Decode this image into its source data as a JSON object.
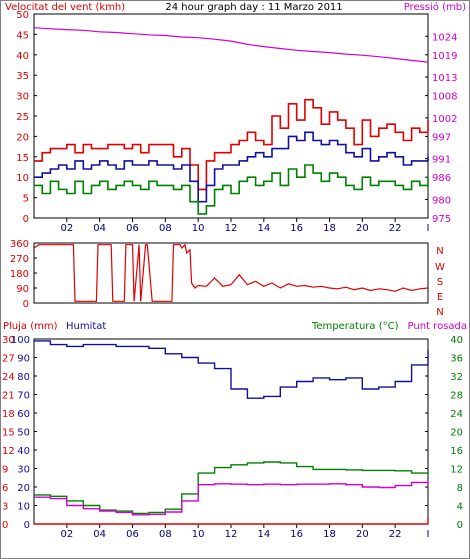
{
  "chart_data": [
    {
      "type": "line",
      "title": "24 hour graph day : 11 Marzo 2011",
      "ylabel_left": "Velocitat del vent (kmh)",
      "ylabel_right": "Pressió (mb)",
      "xticks": [
        "02",
        "04",
        "06",
        "08",
        "10",
        "12",
        "14",
        "16",
        "18",
        "20",
        "22"
      ],
      "x_end_label": "I",
      "xlim": [
        0,
        24
      ],
      "ylim_left": [
        0,
        50
      ],
      "yticks_left": [
        0,
        5,
        10,
        15,
        20,
        25,
        30,
        35,
        40,
        45,
        50
      ],
      "ylim_right": [
        975,
        1030
      ],
      "yticks_right": [
        975,
        980,
        986,
        991,
        997,
        1002,
        1008,
        1013,
        1019,
        1024
      ],
      "colors": {
        "gust": "#e00000",
        "avg": "#1010a0",
        "min": "#008000",
        "pressure": "#d000d0"
      },
      "series": [
        {
          "key": "gust",
          "axis": "left",
          "x": [
            0,
            0.5,
            1,
            1.5,
            2,
            2.5,
            3,
            3.5,
            4,
            4.5,
            5,
            5.5,
            6,
            6.5,
            7,
            7.5,
            8,
            8.5,
            9,
            9.5,
            10,
            10.5,
            11,
            11.5,
            12,
            12.5,
            13,
            13.5,
            14,
            14.5,
            15,
            15.5,
            16,
            16.5,
            17,
            17.5,
            18,
            18.5,
            19,
            19.5,
            20,
            20.5,
            21,
            21.5,
            22,
            22.5,
            23,
            23.5,
            24
          ],
          "values": [
            14,
            16,
            17,
            17,
            18,
            16,
            18,
            17,
            17,
            18,
            18,
            17,
            18,
            16,
            18,
            18,
            18,
            15,
            17,
            13,
            7,
            14,
            16,
            16,
            18,
            19,
            21,
            19,
            18,
            25,
            22,
            28,
            24,
            29,
            27,
            23,
            26,
            24,
            22,
            18,
            24,
            20,
            22,
            23,
            21,
            19,
            22,
            21,
            24
          ]
        },
        {
          "key": "avg",
          "axis": "left",
          "x": [
            0,
            0.5,
            1,
            1.5,
            2,
            2.5,
            3,
            3.5,
            4,
            4.5,
            5,
            5.5,
            6,
            6.5,
            7,
            7.5,
            8,
            8.5,
            9,
            9.5,
            10,
            10.5,
            11,
            11.5,
            12,
            12.5,
            13,
            13.5,
            14,
            14.5,
            15,
            15.5,
            16,
            16.5,
            17,
            17.5,
            18,
            18.5,
            19,
            19.5,
            20,
            20.5,
            21,
            21.5,
            22,
            22.5,
            23,
            23.5,
            24
          ],
          "values": [
            10,
            11,
            12,
            13,
            12,
            14,
            12,
            13,
            14,
            13,
            12,
            14,
            13,
            13,
            14,
            13,
            13,
            12,
            13,
            9,
            4,
            8,
            12,
            13,
            13,
            14,
            15,
            16,
            15,
            17,
            17,
            20,
            19,
            21,
            19,
            18,
            19,
            18,
            16,
            15,
            17,
            14,
            15,
            16,
            15,
            13,
            14,
            14,
            15
          ]
        },
        {
          "key": "min",
          "axis": "left",
          "x": [
            0,
            0.5,
            1,
            1.5,
            2,
            2.5,
            3,
            3.5,
            4,
            4.5,
            5,
            5.5,
            6,
            6.5,
            7,
            7.5,
            8,
            8.5,
            9,
            9.5,
            10,
            10.5,
            11,
            11.5,
            12,
            12.5,
            13,
            13.5,
            14,
            14.5,
            15,
            15.5,
            16,
            16.5,
            17,
            17.5,
            18,
            18.5,
            19,
            19.5,
            20,
            20.5,
            21,
            21.5,
            22,
            22.5,
            23,
            23.5,
            24
          ],
          "values": [
            8,
            6,
            9,
            7,
            6,
            9,
            6,
            8,
            9,
            7,
            8,
            9,
            8,
            7,
            9,
            8,
            8,
            7,
            8,
            4,
            1,
            3,
            7,
            8,
            6,
            9,
            10,
            8,
            9,
            11,
            8,
            12,
            10,
            13,
            11,
            9,
            11,
            10,
            8,
            7,
            10,
            8,
            9,
            9,
            8,
            7,
            9,
            8,
            10
          ]
        },
        {
          "key": "pressure",
          "axis": "right",
          "x": [
            0,
            1,
            2,
            3,
            4,
            5,
            6,
            7,
            8,
            9,
            10,
            11,
            12,
            13,
            14,
            15,
            16,
            17,
            18,
            19,
            20,
            21,
            22,
            23,
            24
          ],
          "values": [
            1026.3,
            1026.0,
            1025.8,
            1025.6,
            1025.2,
            1025.0,
            1024.7,
            1024.4,
            1024.2,
            1023.8,
            1023.6,
            1023.2,
            1022.7,
            1021.8,
            1021.2,
            1020.7,
            1020.2,
            1019.9,
            1019.6,
            1019.2,
            1018.9,
            1018.5,
            1018.0,
            1017.5,
            1017.0
          ]
        }
      ]
    },
    {
      "type": "line",
      "title": "",
      "ylim": [
        0,
        360
      ],
      "yticks": [
        0,
        90,
        180,
        270,
        360
      ],
      "direction_labels": [
        "N",
        "W",
        "S",
        "E",
        "N"
      ],
      "color": "#e00000",
      "series": [
        {
          "key": "direction",
          "x": [
            0,
            0.3,
            0.4,
            2.4,
            2.5,
            3.8,
            3.9,
            4.7,
            4.8,
            5.5,
            5.6,
            6.0,
            6.1,
            6.4,
            6.5,
            6.8,
            6.9,
            7.2,
            7.3,
            8.4,
            8.5,
            8.9,
            9.0,
            9.2,
            9.3,
            9.5,
            9.6,
            9.8,
            10,
            10.5,
            11,
            11.5,
            12,
            12.5,
            13,
            13.5,
            14,
            14.5,
            15,
            15.5,
            16,
            16.5,
            17,
            17.5,
            18,
            18.5,
            19,
            19.5,
            20,
            20.5,
            21,
            21.5,
            22,
            22.5,
            23,
            23.5,
            24
          ],
          "values": [
            330,
            350,
            350,
            350,
            10,
            10,
            350,
            350,
            10,
            10,
            350,
            350,
            10,
            350,
            10,
            350,
            350,
            10,
            10,
            10,
            350,
            350,
            330,
            350,
            300,
            320,
            120,
            90,
            105,
            100,
            150,
            100,
            110,
            170,
            110,
            130,
            100,
            120,
            90,
            115,
            100,
            105,
            95,
            100,
            90,
            85,
            95,
            80,
            90,
            75,
            85,
            80,
            70,
            90,
            75,
            85,
            90
          ]
        }
      ]
    },
    {
      "type": "line",
      "title": "",
      "ylabel_left_1": "Pluja (mm)",
      "ylabel_left_2": "Humitat",
      "ylabel_right_1": "Temperatura (°C)",
      "ylabel_right_2": "Punt rosada",
      "xticks": [
        "02",
        "04",
        "06",
        "08",
        "10",
        "12",
        "14",
        "16",
        "18",
        "20",
        "22"
      ],
      "x_end_label": "I",
      "xlim": [
        0,
        24
      ],
      "ylim_rain": [
        0,
        30
      ],
      "yticks_rain": [
        0,
        3,
        6,
        9,
        12,
        15,
        18,
        21,
        24,
        27,
        30
      ],
      "ylim_humidity": [
        0,
        100
      ],
      "yticks_humidity": [
        0,
        10,
        20,
        30,
        40,
        50,
        60,
        70,
        80,
        90,
        100
      ],
      "ylim_temp": [
        0,
        40
      ],
      "yticks_temp": [
        0,
        4,
        8,
        12,
        16,
        20,
        24,
        28,
        32,
        36,
        40
      ],
      "colors": {
        "rain": "#e00000",
        "humidity": "#1010a0",
        "temperature": "#008000",
        "dewpoint": "#d000d0"
      },
      "series": [
        {
          "key": "rain",
          "axis": "rain",
          "x": [
            0,
            23.7,
            24
          ],
          "values": [
            0,
            0,
            1
          ]
        },
        {
          "key": "humidity",
          "axis": "humidity",
          "x": [
            0,
            1,
            2,
            3,
            4,
            5,
            6,
            7,
            8,
            9,
            10,
            11,
            12,
            13,
            14,
            15,
            16,
            17,
            18,
            19,
            20,
            21,
            22,
            23,
            24
          ],
          "values": [
            99,
            97,
            96,
            97,
            97,
            96,
            96,
            95,
            92,
            90,
            87,
            84,
            73,
            68,
            69,
            74,
            77,
            79,
            78,
            79,
            73,
            74,
            77,
            86,
            94
          ]
        },
        {
          "key": "temperature",
          "axis": "temp",
          "x": [
            0,
            1,
            2,
            3,
            4,
            5,
            6,
            7,
            8,
            9,
            10,
            11,
            12,
            13,
            14,
            15,
            16,
            17,
            18,
            19,
            20,
            21,
            22,
            23,
            24
          ],
          "values": [
            6.3,
            6.0,
            5.0,
            4.0,
            3.0,
            2.8,
            2.3,
            2.5,
            3.2,
            6.5,
            11.0,
            12.2,
            12.8,
            13.2,
            13.4,
            13.2,
            12.4,
            11.8,
            11.8,
            11.7,
            11.6,
            11.6,
            11.5,
            11.0,
            10.2
          ]
        },
        {
          "key": "dewpoint",
          "axis": "temp",
          "x": [
            0,
            1,
            2,
            3,
            4,
            5,
            6,
            7,
            8,
            9,
            10,
            11,
            12,
            13,
            14,
            15,
            16,
            17,
            18,
            19,
            20,
            21,
            22,
            23,
            24
          ],
          "values": [
            5.8,
            5.5,
            4.0,
            3.3,
            2.8,
            2.5,
            2.0,
            2.1,
            2.6,
            5.0,
            8.5,
            8.7,
            8.6,
            8.5,
            8.6,
            8.5,
            8.6,
            8.6,
            8.7,
            8.5,
            8.0,
            7.9,
            8.3,
            9.0,
            9.7
          ]
        }
      ]
    }
  ]
}
